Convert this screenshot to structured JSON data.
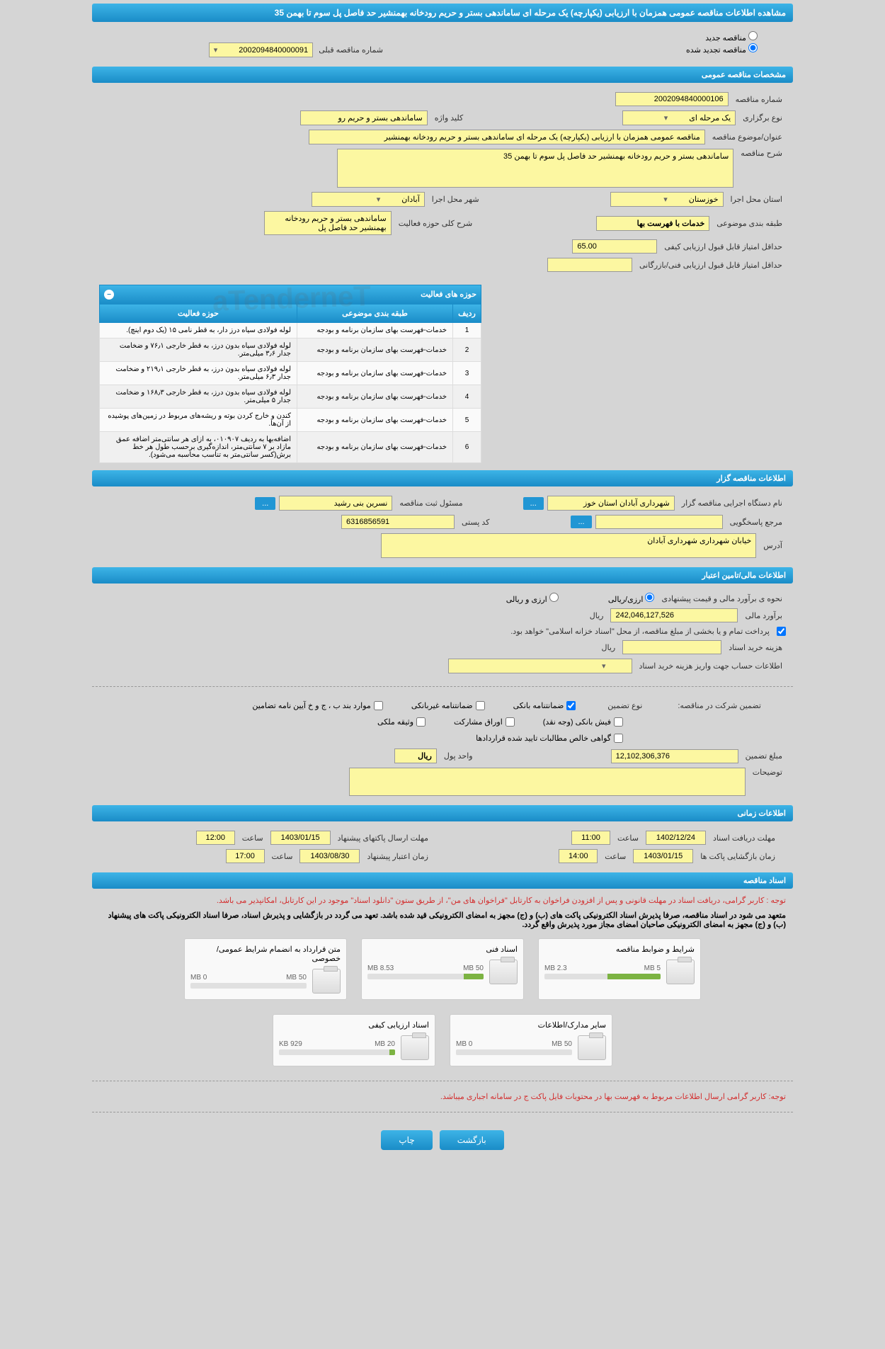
{
  "header": {
    "title": "مشاهده اطلاعات مناقصه عمومی همزمان با ارزیابی (یکپارچه) یک مرحله ای ساماندهی بستر و حریم رودخانه بهمنشیر حد فاصل پل سوم تا بهمن 35"
  },
  "radio": {
    "new": "مناقصه جدید",
    "renewed": "مناقصه تجدید شده",
    "prev_label": "شماره مناقصه قبلی",
    "prev_value": "2002094840000091"
  },
  "sections": {
    "general": "مشخصات مناقصه عمومی",
    "organizer": "اطلاعات مناقصه گزار",
    "financial": "اطلاعات مالی/تامین اعتبار",
    "timing": "اطلاعات زمانی",
    "docs": "اسناد مناقصه"
  },
  "general": {
    "number_label": "شماره مناقصه",
    "number": "2002094840000106",
    "type_label": "نوع برگزاری",
    "type": "یک مرحله ای",
    "keyword_label": "کلید واژه",
    "keyword": "ساماندهی بستر و حریم رو",
    "subject_label": "عنوان/موضوع مناقصه",
    "subject": "مناقصه عمومی همزمان با ارزیابی (یکپارچه) یک مرحله ای ساماندهی بستر و حریم رودخانه بهمنشیر",
    "desc_label": "شرح مناقصه",
    "desc": "ساماندهی بستر و حریم رودخانه بهمنشیر حد فاصل پل سوم تا بهمن 35",
    "province_label": "استان محل اجرا",
    "province": "خوزستان",
    "city_label": "شهر محل اجرا",
    "city": "آبادان",
    "class_label": "طبقه بندی موضوعی",
    "class": "خدمات با فهرست بها",
    "activity_desc_label": "شرح کلی حوزه فعالیت",
    "activity_desc": "ساماندهی بستر و حریم رودخانه بهمنشیر حد فاصل پل",
    "min_qual_label": "حداقل امتیاز قابل قبول ارزیابی کیفی",
    "min_qual": "65.00",
    "min_tech_label": "حداقل امتیاز قابل قبول ارزیابی فنی/بازرگانی"
  },
  "activity_table": {
    "title": "حوزه های فعالیت",
    "col_row": "ردیف",
    "col_class": "طبقه بندی موضوعی",
    "col_activity": "حوزه فعالیت",
    "rows": [
      {
        "n": "1",
        "c": "خدمات-فهرست بهای سازمان برنامه و بودجه",
        "a": "لوله فولادی سیاه درز دار، به قطر نامی ۱۵ (یک دوم اینچ)."
      },
      {
        "n": "2",
        "c": "خدمات-فهرست بهای سازمان برنامه و بودجه",
        "a": "لوله فولادی سیاه بدون درز، به قطر خارجی ۷۶٫۱ و ضخامت جدار ۳٫۶ میلی‌متر."
      },
      {
        "n": "3",
        "c": "خدمات-فهرست بهای سازمان برنامه و بودجه",
        "a": "لوله فولادی سیاه بدون درز، به قطر خارجی ۲۱۹٫۱ و ضخامت جدار ۶٫۳ میلی‌متر."
      },
      {
        "n": "4",
        "c": "خدمات-فهرست بهای سازمان برنامه و بودجه",
        "a": "لوله فولادی سیاه بدون درز، به قطر خارجی ۱۶۸٫۳ و ضخامت جدار ۵ میلی‌متر."
      },
      {
        "n": "5",
        "c": "خدمات-فهرست بهای سازمان برنامه و بودجه",
        "a": "کندن و خارج کردن بوته و ریشه‌های مربوط در زمین‌های پوشیده از آن‌ها."
      },
      {
        "n": "6",
        "c": "خدمات-فهرست بهای سازمان برنامه و بودجه",
        "a": "اضافه‌بها به ردیف ۰۱۰۹۰۷، به ازای هر سانتی‌متر اضافه عمق مازاد بر ۷ سانتی‌متر، اندازه‌گیری برحسب طول هر خط برش(کسر سانتی‌متر به تناسب محاسبه می‌شود)."
      }
    ]
  },
  "organizer": {
    "exec_label": "نام دستگاه اجرایی مناقصه گزار",
    "exec": "شهرداری آبادان استان خوز",
    "responsible_label": "مسئول ثبت مناقصه",
    "responsible": "نسرین بنی رشید",
    "ref_label": "مرجع پاسخگویی",
    "postal_label": "کد پستی",
    "postal": "6316856591",
    "address_label": "آدرس",
    "address": "خیابان شهرداری شهرداری آبادان"
  },
  "financial": {
    "method_label": "نحوه ی برآورد مالی و قیمت پیشنهادی",
    "rial": "ارزی/ریالی",
    "currency": "ارزی و ریالی",
    "estimate_label": "برآورد مالی",
    "estimate": "242,046,127,526",
    "unit": "ریال",
    "treasury_note": "پرداخت تمام و یا بخشی از مبلغ مناقصه، از محل \"اسناد خزانه اسلامی\" خواهد بود.",
    "doc_cost_label": "هزینه خرید اسناد",
    "doc_cost_unit": "ریال",
    "account_label": "اطلاعات حساب جهت واریز هزینه خرید اسناد"
  },
  "guarantee": {
    "header_label": "تضمین شرکت در مناقصه:",
    "type_label": "نوع تضمین",
    "bank": "ضمانتنامه بانکی",
    "nonbank": "ضمانتنامه غیربانکی",
    "bond": "موارد بند ب ، ج و خ آیین نامه تضامین",
    "cash": "فیش بانکی (وجه نقد)",
    "securities": "اوراق مشارکت",
    "property": "وثیقه ملکی",
    "contracts": "گواهی خالص مطالبات تایید شده قراردادها",
    "amount_label": "مبلغ تضمین",
    "amount": "12,102,306,376",
    "unit_label": "واحد پول",
    "unit": "ریال",
    "notes_label": "توضیحات"
  },
  "timing": {
    "receive_label": "مهلت دریافت اسناد",
    "receive_date": "1402/12/24",
    "receive_time": "11:00",
    "send_label": "مهلت ارسال پاکتهای پیشنهاد",
    "send_date": "1403/01/15",
    "send_time": "12:00",
    "open_label": "زمان بازگشایی پاکت ها",
    "open_date": "1403/01/15",
    "open_time": "14:00",
    "valid_label": "زمان اعتبار پیشنهاد",
    "valid_date": "1403/08/30",
    "valid_time": "17:00",
    "time_label": "ساعت"
  },
  "docs": {
    "note1": "توجه : کاربر گرامی، دریافت اسناد در مهلت قانونی و پس از افزودن فراخوان به کارتابل \"فراخوان های من\"، از طریق ستون \"دانلود اسناد\" موجود در این کارتابل، امکانپذیر می باشد.",
    "note2": "متعهد می شود در اسناد مناقصه، صرفا پذیرش اسناد الکترونیکی پاکت های (ب) و (ج) مجهز به امضای الکترونیکی قید شده باشد. تعهد می گردد در بازگشایی و پذیرش اسناد، صرفا اسناد الکترونیکی پاکت های پیشنهاد (ب) و (ج) مجهز به امضای الکترونیکی صاحبان امضای مجاز مورد پذیرش واقع گردد.",
    "files": [
      {
        "title": "شرایط و ضوابط مناقصه",
        "size": "2.3 MB",
        "limit": "5 MB",
        "pct": 46
      },
      {
        "title": "اسناد فنی",
        "size": "8.53 MB",
        "limit": "50 MB",
        "pct": 17
      },
      {
        "title": "متن قرارداد به انضمام شرایط عمومی/خصوصی",
        "size": "0 MB",
        "limit": "50 MB",
        "pct": 0
      },
      {
        "title": "سایر مدارک/اطلاعات",
        "size": "0 MB",
        "limit": "50 MB",
        "pct": 0
      },
      {
        "title": "اسناد ارزیابی کیفی",
        "size": "929 KB",
        "limit": "20 MB",
        "pct": 5
      }
    ],
    "note3": "توجه: کاربر گرامی ارسال اطلاعات مربوط به فهرست بها در محتویات فایل پاکت ج در سامانه اجباری میباشد."
  },
  "buttons": {
    "back": "بازگشت",
    "print": "چاپ"
  },
  "watermark": "aTenderneT",
  "ellipsis": "..."
}
